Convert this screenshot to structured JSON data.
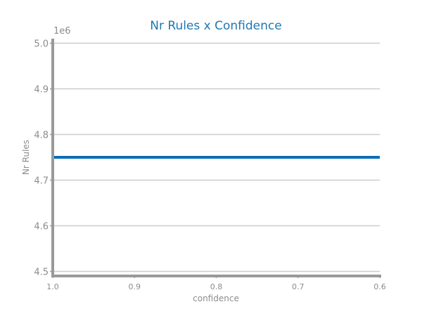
{
  "chart_data": {
    "type": "line",
    "title": "Nr Rules x Confidence",
    "xlabel": "confidence",
    "ylabel": "Nr Rules",
    "y_offset_label": "1e6",
    "x": [
      1.0,
      0.9,
      0.8,
      0.7,
      0.6
    ],
    "x_tick_labels": [
      "1.0",
      "0.9",
      "0.8",
      "0.7",
      "0.6"
    ],
    "xlim": [
      1.0,
      0.6
    ],
    "x_inverted": true,
    "y_ticks": [
      4.5,
      4.6,
      4.7,
      4.8,
      4.9,
      5.0
    ],
    "y_tick_labels": [
      "4.5",
      "4.6",
      "4.7",
      "4.8",
      "4.9",
      "5.0"
    ],
    "ylim": [
      4.49,
      5.01
    ],
    "grid": "horizontal",
    "series": [
      {
        "values": [
          4.75,
          4.75,
          4.75,
          4.75,
          4.75
        ]
      }
    ],
    "colors": {
      "title": "#1f77b4",
      "line": "#0a6fb8",
      "grid": "#cccccc",
      "axis": "#999999",
      "text": "#8c8c8c"
    }
  }
}
